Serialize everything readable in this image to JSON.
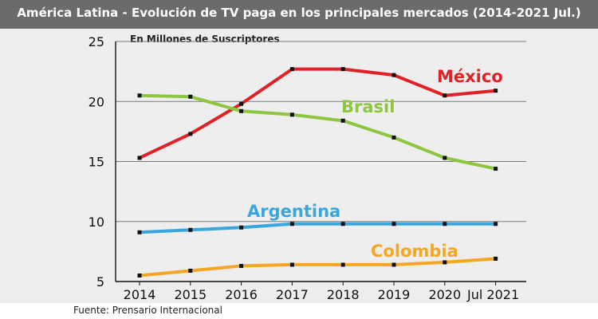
{
  "chart_data": {
    "type": "line",
    "title": "América Latina - Evolución de TV paga en los principales mercados (2014-2021 Jul.)",
    "ylabel": "En Millones de Suscriptores",
    "source": "Fuente: Prensario Internacional",
    "x": [
      "2014",
      "2015",
      "2016",
      "2017",
      "2018",
      "2019",
      "2020",
      "Jul 2021"
    ],
    "yticks": [
      5,
      10,
      15,
      20,
      25
    ],
    "ylim": [
      5,
      25
    ],
    "grid": true,
    "series": [
      {
        "name": "México",
        "color": "#e02226",
        "values": [
          15.3,
          17.3,
          19.8,
          22.7,
          22.7,
          22.2,
          20.5,
          20.9
        ]
      },
      {
        "name": "Brasil",
        "color": "#8dc63f",
        "values": [
          20.5,
          20.4,
          19.2,
          18.9,
          18.4,
          17.0,
          15.3,
          14.4
        ]
      },
      {
        "name": "Argentina",
        "color": "#3aa6de",
        "values": [
          9.1,
          9.3,
          9.5,
          9.8,
          9.8,
          9.8,
          9.8,
          9.8
        ]
      },
      {
        "name": "Colombia",
        "color": "#f5a623",
        "values": [
          5.5,
          5.9,
          6.3,
          6.4,
          6.4,
          6.4,
          6.6,
          6.9
        ]
      }
    ]
  }
}
